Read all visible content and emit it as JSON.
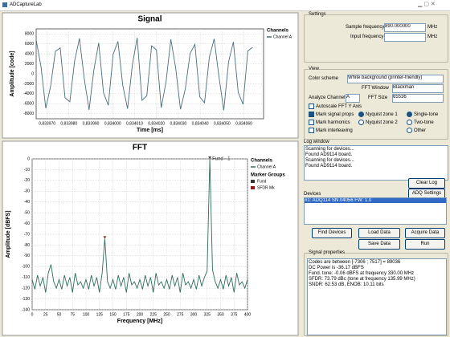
{
  "window": {
    "title": "ADCaptureLab"
  },
  "chart_data": [
    {
      "type": "line",
      "title": "Signal",
      "x_label": "Time [ms]",
      "y_label": "Amplitude [code]",
      "legend_title": "Channels",
      "grid": true,
      "xlim": [
        0.833965,
        0.834069
      ],
      "ylim": [
        -9000,
        9000
      ],
      "xticks": [
        {
          "value": 0.83397,
          "label": "0,833970"
        },
        {
          "value": 0.83398,
          "label": "0,833980"
        },
        {
          "value": 0.83399,
          "label": "0,833990"
        },
        {
          "value": 0.834,
          "label": "0,834000"
        },
        {
          "value": 0.83401,
          "label": "0,834010"
        },
        {
          "value": 0.83402,
          "label": "0,834020"
        },
        {
          "value": 0.83403,
          "label": "0,834030"
        },
        {
          "value": 0.83404,
          "label": "0,834040"
        },
        {
          "value": 0.83405,
          "label": "0,834050"
        },
        {
          "value": 0.83406,
          "label": "0,834060"
        }
      ],
      "yticks": [
        8000,
        6000,
        4000,
        2000,
        0,
        -2000,
        -4000,
        -6000,
        -8000
      ],
      "series": [
        {
          "name": "Channel A",
          "color": "#4a6e78",
          "x": [
            0.833965,
            0.8339672,
            0.8339694,
            0.8339716,
            0.8339738,
            0.833976,
            0.8339782,
            0.8339804,
            0.8339826,
            0.8339848,
            0.833987,
            0.8339892,
            0.8339914,
            0.8339936,
            0.8339958,
            0.833998,
            0.8340002,
            0.8340024,
            0.8340046,
            0.8340068,
            0.834009,
            0.8340112,
            0.8340134,
            0.8340156,
            0.8340178,
            0.83402,
            0.8340222,
            0.8340244,
            0.8340266,
            0.8340288,
            0.834031,
            0.8340332,
            0.8340354,
            0.8340376,
            0.8340398,
            0.834042,
            0.8340442,
            0.8340464,
            0.8340486,
            0.8340508,
            0.834053,
            0.8340552,
            0.8340574,
            0.8340596,
            0.8340618,
            0.834064
          ],
          "values": [
            6800,
            1500,
            -6900,
            -2500,
            4500,
            5200,
            -4800,
            -5600,
            2600,
            7100,
            -1000,
            -7200,
            800,
            6200,
            -3800,
            -6300,
            3900,
            6500,
            -2300,
            -7000,
            1800,
            7200,
            -5300,
            -4400,
            5600,
            4800,
            -6800,
            -1600,
            6900,
            1200,
            -7100,
            -3100,
            4100,
            5900,
            -4600,
            -5800,
            3300,
            7000,
            -600,
            -7300,
            2400,
            6400,
            -3700,
            -6100,
            4600,
            5300
          ]
        }
      ]
    },
    {
      "type": "line",
      "title": "FFT",
      "x_label": "Frequency [MHz]",
      "y_label": "Amplitude [dBFS]",
      "legend_title": "Channels",
      "grid": true,
      "xlim": [
        0,
        400
      ],
      "ylim": [
        -140,
        0
      ],
      "xticks": [
        0,
        25,
        50,
        75,
        100,
        125,
        150,
        175,
        200,
        225,
        250,
        275,
        300,
        325,
        350,
        375,
        400
      ],
      "yticks": [
        0,
        -10,
        -20,
        -30,
        -40,
        -50,
        -60,
        -70,
        -80,
        -90,
        -100,
        -110,
        -120,
        -130,
        -140
      ],
      "series": [
        {
          "name": "Channel A",
          "color": "#2e6b5e",
          "x": [
            0,
            5,
            10,
            15,
            20,
            25,
            30,
            35,
            40,
            45,
            50,
            55,
            60,
            65,
            70,
            75,
            80,
            85,
            90,
            95,
            100,
            105,
            110,
            115,
            120,
            125,
            130,
            135,
            140,
            145,
            150,
            155,
            160,
            165,
            170,
            175,
            180,
            185,
            190,
            195,
            200,
            205,
            210,
            215,
            220,
            225,
            230,
            235,
            240,
            245,
            250,
            255,
            260,
            265,
            270,
            275,
            280,
            285,
            290,
            295,
            300,
            305,
            310,
            315,
            320,
            325,
            330,
            335,
            340,
            345,
            350,
            355,
            360,
            365,
            370,
            375,
            380,
            385,
            390,
            395,
            400
          ],
          "values": [
            -112,
            -121,
            -108,
            -118,
            -110,
            -124,
            -106,
            -98,
            -114,
            -120,
            -112,
            -121,
            -108,
            -118,
            -110,
            -124,
            -106,
            -117,
            -114,
            -120,
            -112,
            -121,
            -108,
            -118,
            -110,
            -124,
            -106,
            -74,
            -114,
            -120,
            -112,
            -121,
            -108,
            -118,
            -110,
            -124,
            -106,
            -117,
            -114,
            -120,
            -112,
            -121,
            -108,
            -118,
            -110,
            -124,
            -106,
            -117,
            -114,
            -120,
            -112,
            -121,
            -108,
            -118,
            -110,
            -124,
            -106,
            -117,
            -114,
            -120,
            -112,
            -121,
            -108,
            -118,
            -110,
            -104,
            -0.06,
            -103,
            -114,
            -120,
            -112,
            -121,
            -108,
            -118,
            -110,
            -124,
            -106,
            -117,
            -114,
            -120,
            -112
          ]
        }
      ],
      "marker_groups_title": "Marker Groups",
      "markers": [
        {
          "name": "Fund",
          "color": "#333333",
          "x": 330,
          "value": -0.06,
          "label": "Fund - 1"
        },
        {
          "name": "SFDR Mk",
          "color": "#8b1a1a",
          "x": 135,
          "value": -74
        }
      ]
    }
  ],
  "settings": {
    "title": "Settings",
    "sample_frequency_label": "Sample frequency",
    "sample_frequency": "890.000000",
    "input_frequency_label": "Input frequency",
    "unit": "MHz"
  },
  "view": {
    "title": "View",
    "color_scheme_label": "Color scheme",
    "color_scheme": "White background (printer-friendly)",
    "fft_window_label": "FFT Window",
    "fft_window": "Blackman",
    "analyze_channel_label": "Analyze Channel",
    "analyze_channel": "A",
    "fft_size_label": "FFT Size",
    "fft_size": "65536",
    "checkboxes": [
      "Autoscale FFT Y Axis",
      "Mark signal props",
      "Mark harmonics",
      "Mark interleaving"
    ],
    "nyquist": [
      "Nyquist zone 1",
      "Nyquist zone 2"
    ],
    "tones": [
      "Single-tone",
      "Two-tone",
      "Other"
    ]
  },
  "log": {
    "title": "Log window",
    "lines": [
      "Scanning for devices...",
      "Found AD9114 board.",
      "Scanning for devices...",
      "Found AD9114 board."
    ]
  },
  "buttons": {
    "clear_log": "Clear Log",
    "adq_settings": "ADQ Settings",
    "find_devices": "Find Devices",
    "load_data": "Load Data",
    "acquire_data": "Acquire Data",
    "save_data": "Save Data",
    "run": "Run"
  },
  "devices": {
    "title": "Devices",
    "items": [
      "#1: ADQ114 SN 04056 FW: 1.0"
    ]
  },
  "signal_properties": {
    "title": "Signal properties",
    "lines": [
      "Codes are between [-7306 ; 7517] = 89036",
      "DC Power is -36.17 dBFS",
      "Fund. tone: -0.06 dBFS at frequency 330.00 MHz",
      "SFDR: 73.79 dBc (tone at frequency 135.99 MHz)",
      "SNDR: 62.53 dB, ENOB: 10.11 bits"
    ]
  }
}
